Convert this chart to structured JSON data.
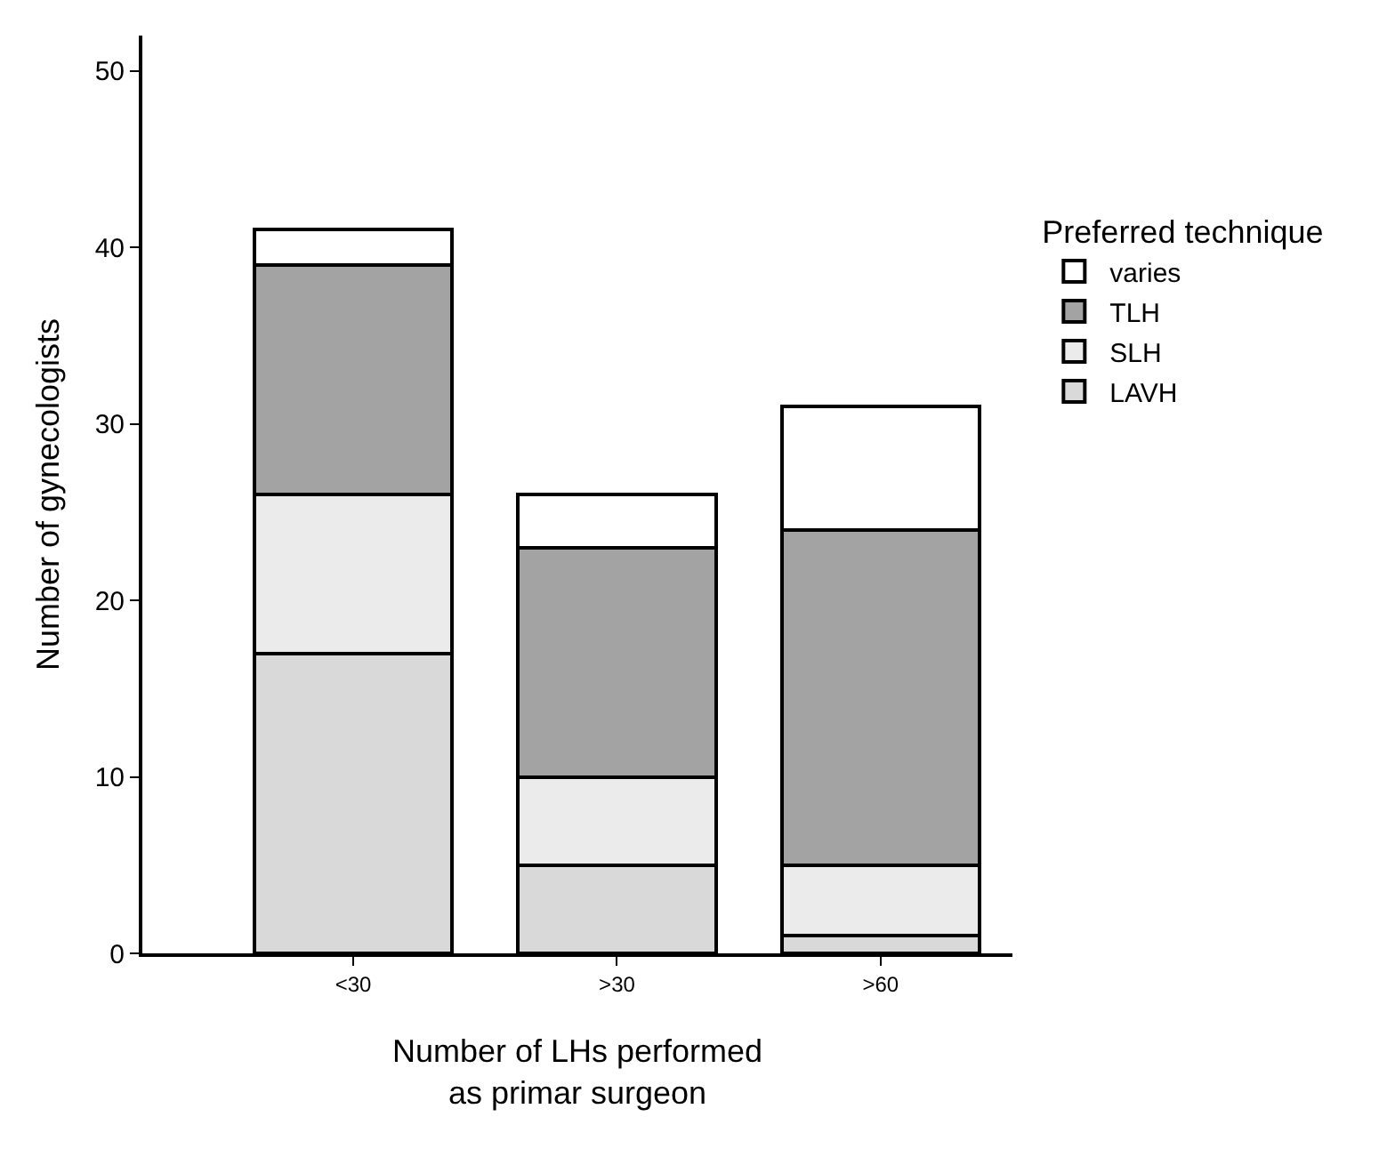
{
  "chart_data": {
    "type": "bar",
    "stacked": true,
    "categories": [
      "<30",
      ">30",
      ">60"
    ],
    "series": [
      {
        "name": "LAVH",
        "color": "#d9d9d9",
        "values": [
          17,
          5,
          1
        ]
      },
      {
        "name": "SLH",
        "color": "#ebebeb",
        "values": [
          9,
          5,
          4
        ]
      },
      {
        "name": "TLH",
        "color": "#a3a3a3",
        "values": [
          13,
          13,
          19
        ]
      },
      {
        "name": "varies",
        "color": "#ffffff",
        "values": [
          2,
          3,
          7
        ]
      }
    ],
    "xlabel": "Number of LHs performed\nas primar surgeon",
    "ylabel": "Number of gynecologists",
    "legend_title": "Preferred technique",
    "legend": "right",
    "ylim": [
      0,
      52
    ],
    "yticks": [
      0,
      10,
      20,
      30,
      40,
      50
    ]
  }
}
